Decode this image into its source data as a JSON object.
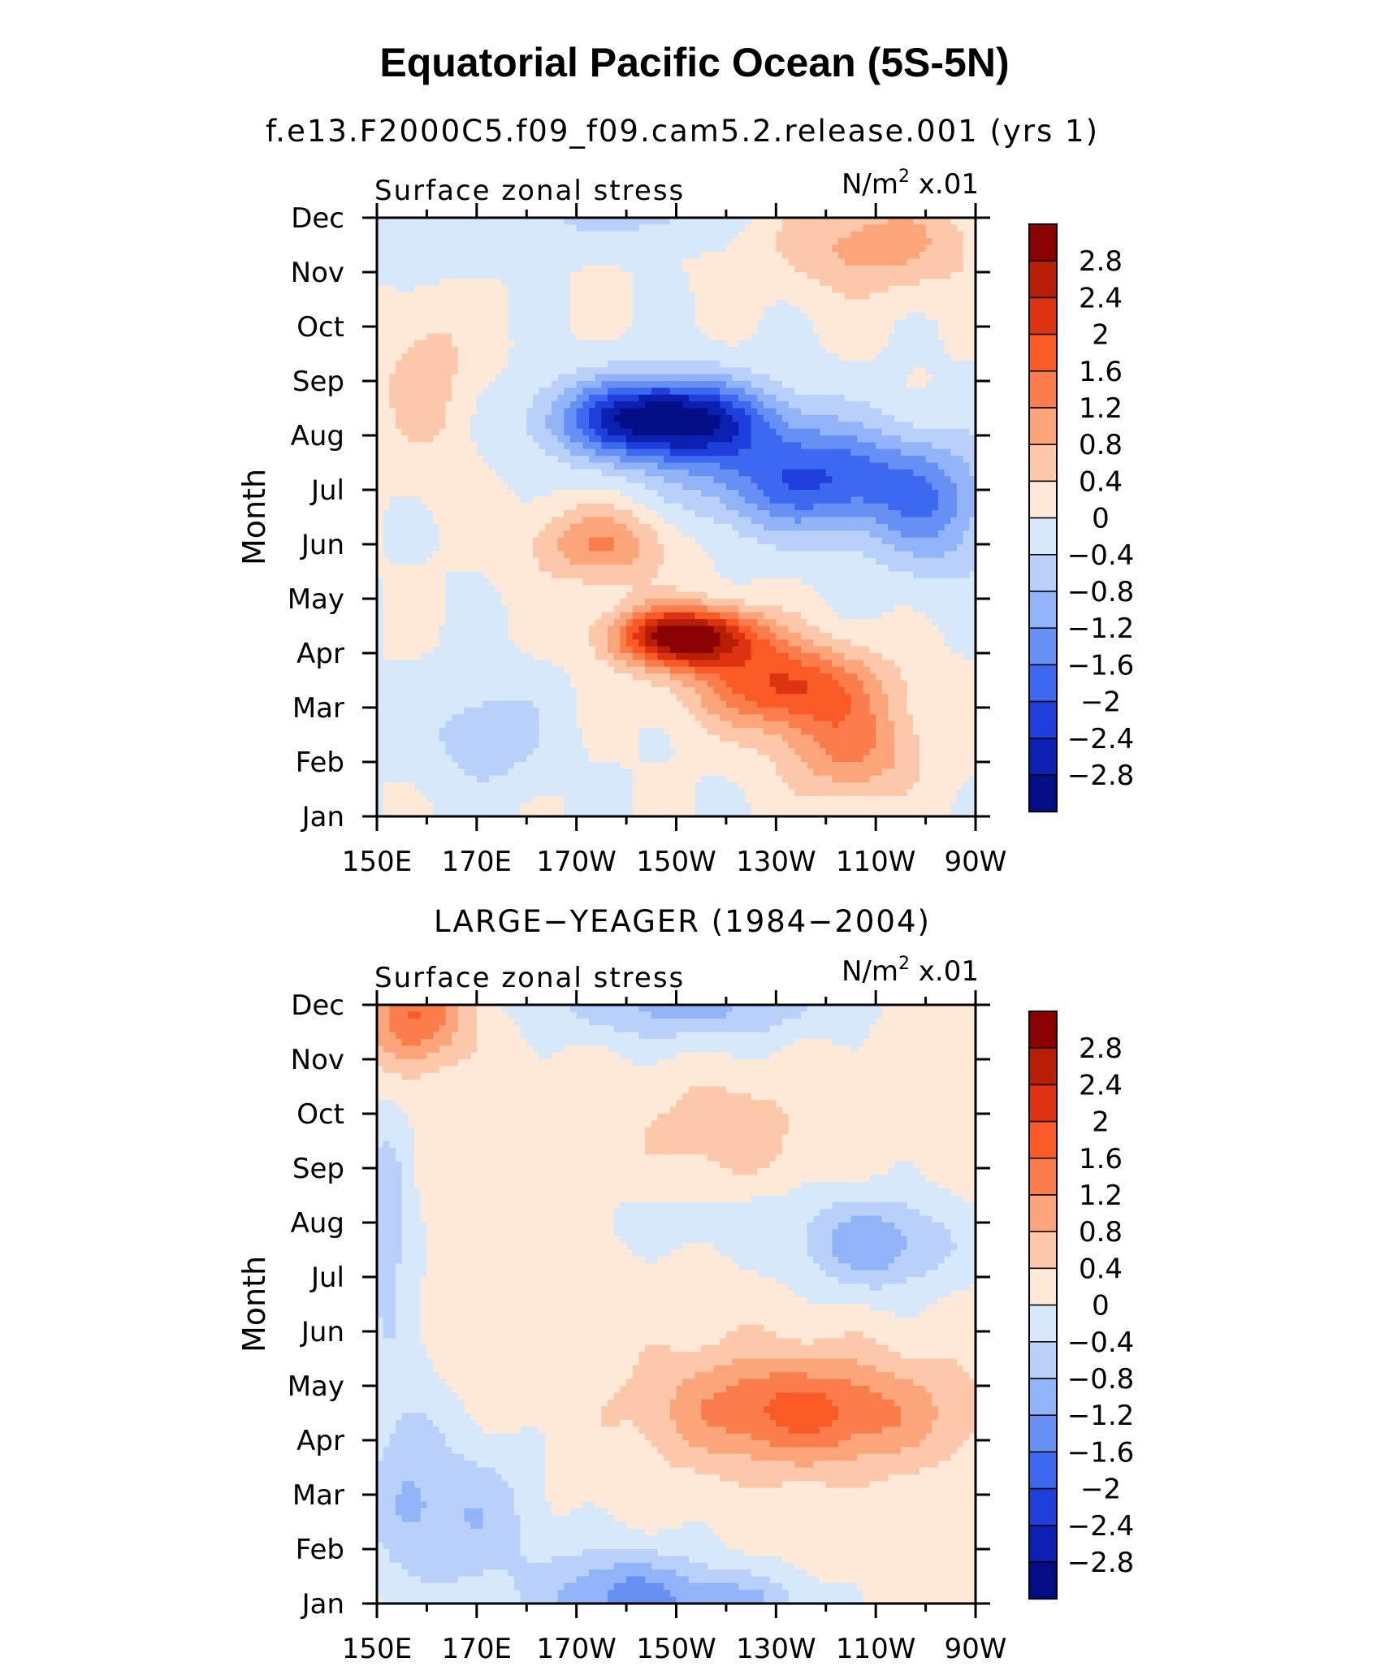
{
  "title": "Equatorial Pacific Ocean (5S-5N)",
  "panels": [
    {
      "subtitle": "f.e13.F2000C5.f09_f09.cam5.2.release.001 (yrs 1)",
      "left_label": "Surface zonal stress",
      "right_label_base": "N/m",
      "right_label_sup": "2",
      "right_label_scale": "x.01"
    },
    {
      "subtitle": "LARGE−YEAGER (1984−2004)",
      "left_label": "Surface zonal stress",
      "right_label_base": "N/m",
      "right_label_sup": "2",
      "right_label_scale": "x.01"
    }
  ],
  "chart_data": [
    {
      "type": "heatmap",
      "title": "f.e13.F2000C5.f09_f09.cam5.2.release.001 (yrs 1)",
      "field": "Surface zonal stress",
      "units": "N/m2 x.01",
      "ylabel": "Month",
      "x_ticks": [
        "150E",
        "170E",
        "170W",
        "150W",
        "130W",
        "110W",
        "90W"
      ],
      "y_ticks": [
        "Jan",
        "Feb",
        "Mar",
        "Apr",
        "May",
        "Jun",
        "Jul",
        "Aug",
        "Sep",
        "Oct",
        "Nov",
        "Dec"
      ],
      "x_range_deg_east": [
        150,
        270
      ],
      "contour_levels": [
        -2.8,
        -2.4,
        -2,
        -1.6,
        -1.2,
        -0.8,
        -0.4,
        0,
        0.4,
        0.8,
        1.2,
        1.6,
        2,
        2.4,
        2.8
      ],
      "features": [
        {
          "sign": "negative",
          "peak": -3.0,
          "center_lon_east": 210,
          "center_month": 7.2,
          "note": "strongest easterly stress, Jul–Sep"
        },
        {
          "sign": "positive",
          "peak": 3.0,
          "center_lon_east": 212,
          "center_month": 3.3,
          "note": "strongest westerly anomaly, Mar–Apr"
        },
        {
          "sign": "positive",
          "peak": 1.2,
          "center_lon_east": 250,
          "center_month": 10.6,
          "note": "Oct–Dec east Pacific"
        }
      ]
    },
    {
      "type": "heatmap",
      "title": "LARGE−YEAGER (1984−2004)",
      "field": "Surface zonal stress",
      "units": "N/m2 x.01",
      "ylabel": "Month",
      "x_ticks": [
        "150E",
        "170E",
        "170W",
        "150W",
        "130W",
        "110W",
        "90W"
      ],
      "y_ticks": [
        "Jan",
        "Feb",
        "Mar",
        "Apr",
        "May",
        "Jun",
        "Jul",
        "Aug",
        "Sep",
        "Oct",
        "Nov",
        "Dec"
      ],
      "x_range_deg_east": [
        150,
        270
      ],
      "contour_levels": [
        -2.8,
        -2.4,
        -2,
        -1.6,
        -1.2,
        -0.8,
        -0.4,
        0,
        0.4,
        0.8,
        1.2,
        1.6,
        2,
        2.4,
        2.8
      ],
      "features": [
        {
          "sign": "positive",
          "peak": 1.6,
          "center_lon_east": 238,
          "center_month": 3.5,
          "note": "Mar–May positive anomaly"
        },
        {
          "sign": "negative",
          "peak": -2.0,
          "center_lon_east": 200,
          "center_month": 0.3,
          "note": "Jan–Feb west/central Pacific"
        },
        {
          "sign": "positive",
          "peak": 1.6,
          "center_lon_east": 160,
          "center_month": 10.8,
          "note": "Nov–Dec far west"
        },
        {
          "sign": "negative",
          "peak": -1.2,
          "center_lon_east": 250,
          "center_month": 6.5,
          "note": "Jul–Aug east Pacific"
        }
      ]
    }
  ],
  "colorbar": {
    "labels": [
      "2.8",
      "2.4",
      "2",
      "1.6",
      "1.2",
      "0.8",
      "0.4",
      "0",
      "−0.4",
      "−0.8",
      "−1.2",
      "−1.6",
      "−2",
      "−2.4",
      "−2.8"
    ],
    "colors_top_to_bottom": [
      "#8B0000",
      "#B81E06",
      "#DD3310",
      "#FA5A25",
      "#FB7D4B",
      "#FCA47A",
      "#FDC7AA",
      "#FEE9D8",
      "#D8E8FB",
      "#B8D0FA",
      "#91B3F7",
      "#6690F4",
      "#3C69F0",
      "#1E3FDC",
      "#0B1FB0",
      "#030D84"
    ]
  }
}
